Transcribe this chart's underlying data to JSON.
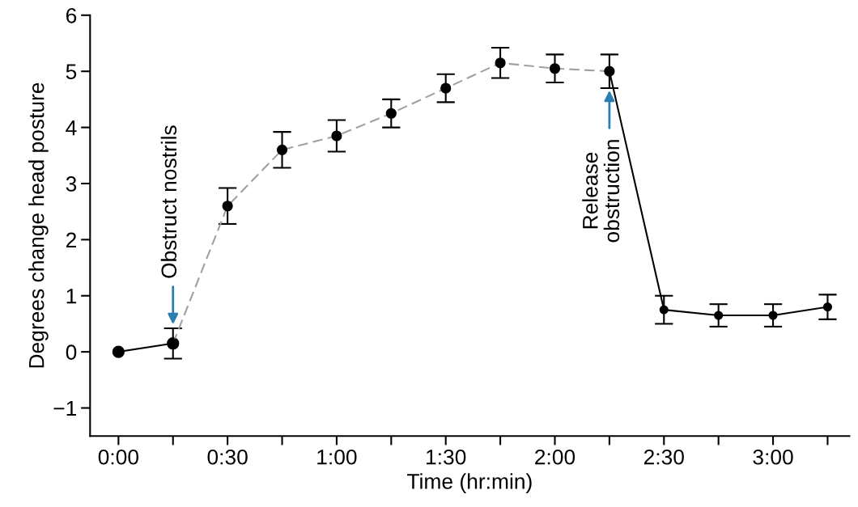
{
  "chart_data": {
    "type": "line",
    "xlabel": "Time (hr:min)",
    "ylabel": "Degrees change head posture",
    "xlim": [
      -0.13,
      3.35
    ],
    "ylim": [
      -1.5,
      6
    ],
    "xticks": [
      {
        "value": 0,
        "label": "0:00"
      },
      {
        "value": 0.25,
        "label": null
      },
      {
        "value": 0.5,
        "label": "0:30"
      },
      {
        "value": 0.75,
        "label": null
      },
      {
        "value": 1,
        "label": "1:00"
      },
      {
        "value": 1.25,
        "label": null
      },
      {
        "value": 1.5,
        "label": "1:30"
      },
      {
        "value": 1.75,
        "label": null
      },
      {
        "value": 2,
        "label": "2:00"
      },
      {
        "value": 2.25,
        "label": null
      },
      {
        "value": 2.5,
        "label": "2:30"
      },
      {
        "value": 2.75,
        "label": null
      },
      {
        "value": 3,
        "label": "3:00"
      },
      {
        "value": 3.25,
        "label": null
      }
    ],
    "yticks": [
      {
        "value": -1,
        "label": "−1"
      },
      0,
      1,
      2,
      3,
      4,
      5,
      6
    ],
    "grid": false,
    "marker": "circle",
    "series": [
      {
        "color": "#000000",
        "line_style": "solid",
        "x": [
          0,
          0.25
        ],
        "values": [
          0.0,
          0.15
        ],
        "errors": [
          null,
          0.27
        ]
      },
      {
        "color": "#a0a0a0",
        "line_style": "dashed",
        "x": [
          0.25,
          0.5,
          0.75,
          1,
          1.25,
          1.5,
          1.75,
          2,
          2.25
        ],
        "values": [
          0.15,
          2.6,
          3.6,
          3.85,
          4.25,
          4.7,
          5.15,
          5.05,
          5.0
        ],
        "errors": [
          null,
          0.32,
          0.32,
          0.28,
          0.25,
          0.25,
          0.27,
          0.25,
          0.3
        ]
      },
      {
        "color": "#000000",
        "line_style": "solid",
        "x": [
          2.25,
          2.5,
          2.75,
          3,
          3.25
        ],
        "values": [
          5.0,
          0.75,
          0.65,
          0.65,
          0.8
        ],
        "errors": [
          null,
          0.25,
          0.2,
          0.2,
          0.22
        ]
      }
    ],
    "annotations": [
      {
        "text": "Obstruct nostrils",
        "x": 0.25,
        "y": 0.45
      },
      {
        "text": "Release\nobstruction",
        "x": 2.25,
        "y": 4.75
      }
    ]
  }
}
